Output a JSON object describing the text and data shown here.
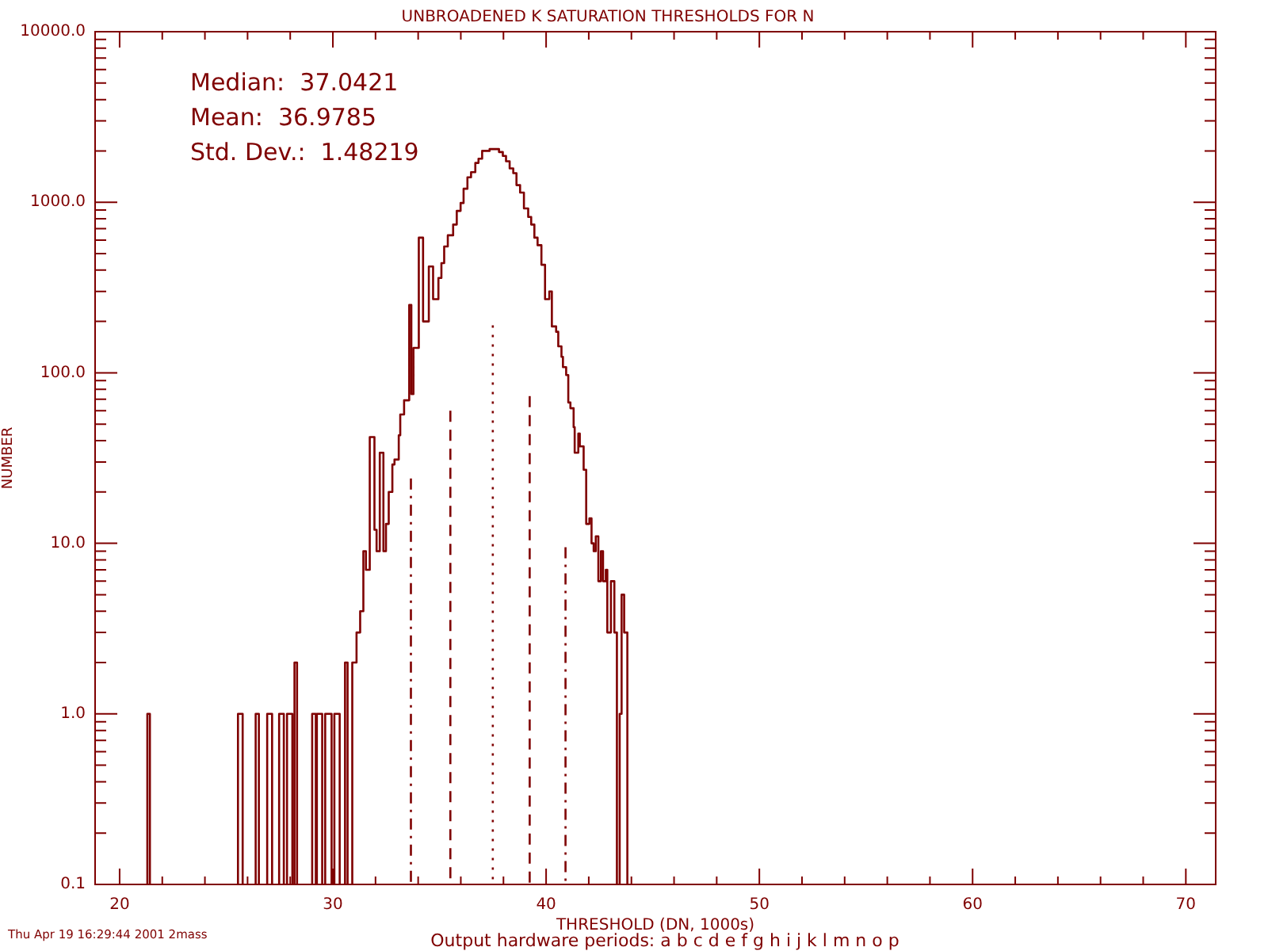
{
  "chart_data": {
    "type": "histogram",
    "title": "UNBROADENED K SATURATION THRESHOLDS FOR N",
    "xlabel": "THRESHOLD (DN, 1000s)",
    "ylabel": "NUMBER",
    "log": "y",
    "xlim": [
      18.85,
      71.4
    ],
    "xticks": [
      20,
      {
        "value": 22,
        "label": null
      },
      {
        "value": 24,
        "label": null
      },
      {
        "value": 26,
        "label": null
      },
      {
        "value": 28,
        "label": null
      },
      30,
      {
        "value": 32,
        "label": null
      },
      {
        "value": 34,
        "label": null
      },
      {
        "value": 36,
        "label": null
      },
      {
        "value": 38,
        "label": null
      },
      40,
      {
        "value": 42,
        "label": null
      },
      {
        "value": 44,
        "label": null
      },
      {
        "value": 46,
        "label": null
      },
      {
        "value": 48,
        "label": null
      },
      50,
      {
        "value": 52,
        "label": null
      },
      {
        "value": 54,
        "label": null
      },
      {
        "value": 56,
        "label": null
      },
      {
        "value": 58,
        "label": null
      },
      60,
      {
        "value": 62,
        "label": null
      },
      {
        "value": 64,
        "label": null
      },
      {
        "value": 66,
        "label": null
      },
      {
        "value": 68,
        "label": null
      },
      70
    ],
    "ylim": [
      0.1,
      10000
    ],
    "yticks": [
      0.1,
      {
        "value": 0.2,
        "label": null
      },
      {
        "value": 0.3,
        "label": null
      },
      {
        "value": 0.4,
        "label": null
      },
      {
        "value": 0.5,
        "label": null
      },
      {
        "value": 0.6,
        "label": null
      },
      {
        "value": 0.7,
        "label": null
      },
      {
        "value": 0.8,
        "label": null
      },
      {
        "value": 0.9,
        "label": null
      },
      {
        "value": 1,
        "label": "1.0"
      },
      {
        "value": 2,
        "label": null
      },
      {
        "value": 3,
        "label": null
      },
      {
        "value": 4,
        "label": null
      },
      {
        "value": 5,
        "label": null
      },
      {
        "value": 6,
        "label": null
      },
      {
        "value": 7,
        "label": null
      },
      {
        "value": 8,
        "label": null
      },
      {
        "value": 9,
        "label": null
      },
      {
        "value": 10,
        "label": "10.0"
      },
      {
        "value": 20,
        "label": null
      },
      {
        "value": 30,
        "label": null
      },
      {
        "value": 40,
        "label": null
      },
      {
        "value": 50,
        "label": null
      },
      {
        "value": 60,
        "label": null
      },
      {
        "value": 70,
        "label": null
      },
      {
        "value": 80,
        "label": null
      },
      {
        "value": 90,
        "label": null
      },
      {
        "value": 100,
        "label": "100.0"
      },
      {
        "value": 200,
        "label": null
      },
      {
        "value": 300,
        "label": null
      },
      {
        "value": 400,
        "label": null
      },
      {
        "value": 500,
        "label": null
      },
      {
        "value": 600,
        "label": null
      },
      {
        "value": 700,
        "label": null
      },
      {
        "value": 800,
        "label": null
      },
      {
        "value": 900,
        "label": null
      },
      {
        "value": 1000,
        "label": "1000.0"
      },
      {
        "value": 2000,
        "label": null
      },
      {
        "value": 3000,
        "label": null
      },
      {
        "value": 4000,
        "label": null
      },
      {
        "value": 5000,
        "label": null
      },
      {
        "value": 6000,
        "label": null
      },
      {
        "value": 7000,
        "label": null
      },
      {
        "value": 8000,
        "label": null
      },
      {
        "value": 9000,
        "label": null
      },
      {
        "value": 10000,
        "label": "10000.0"
      }
    ],
    "series": [
      {
        "color": "#7f0000",
        "bins": [
          21.3,
          21.42,
          25.55,
          25.77,
          26.38,
          26.53,
          26.92,
          27.15,
          27.48,
          27.7,
          27.85,
          28.1,
          28.2,
          28.32,
          29.03,
          29.2,
          29.25,
          29.5,
          29.64,
          29.94,
          30.07,
          30.32,
          30.57,
          30.69,
          30.91,
          31.11,
          31.28,
          31.43,
          31.55,
          31.73,
          31.95,
          32.05,
          32.2,
          32.37,
          32.49,
          32.62,
          32.79,
          32.89,
          33.09,
          33.16,
          33.34,
          33.58,
          33.68,
          33.78,
          34.03,
          34.23,
          34.5,
          34.7,
          34.95,
          35.09,
          35.22,
          35.39,
          35.64,
          35.81,
          35.99,
          36.13,
          36.31,
          36.48,
          36.68,
          36.83,
          37.0,
          37.35,
          37.79,
          37.97,
          38.12,
          38.29,
          38.46,
          38.61,
          38.78,
          38.96,
          39.16,
          39.3,
          39.45,
          39.6,
          39.78,
          39.95,
          40.15,
          40.27,
          40.47,
          40.57,
          40.72,
          40.79,
          40.94,
          41.04,
          41.14,
          41.29,
          41.34,
          41.51,
          41.58,
          41.76,
          41.88,
          42.03,
          42.13,
          42.23,
          42.33,
          42.45,
          42.57,
          42.67,
          42.8,
          42.87,
          43.04,
          43.2,
          43.32,
          43.45,
          43.54,
          43.66,
          43.81
        ],
        "values": [
          1,
          null,
          1,
          null,
          1,
          null,
          1,
          null,
          1,
          null,
          1,
          null,
          2,
          null,
          1,
          null,
          1,
          null,
          1,
          null,
          1,
          null,
          2,
          null,
          2,
          3,
          4,
          9,
          7,
          42,
          12,
          9,
          34,
          9,
          13,
          20,
          29,
          31,
          43,
          57,
          69,
          250,
          75,
          140,
          620,
          200,
          420,
          270,
          360,
          440,
          550,
          640,
          740,
          890,
          990,
          1200,
          1400,
          1500,
          1700,
          1800,
          2000,
          2050,
          1970,
          1870,
          1740,
          1580,
          1480,
          1260,
          1140,
          920,
          820,
          740,
          620,
          560,
          430,
          270,
          300,
          187,
          174,
          143,
          124,
          108,
          97,
          67,
          62,
          48,
          34,
          44,
          37,
          27,
          13,
          14,
          10,
          9,
          11,
          6,
          9,
          6,
          7,
          3,
          6,
          3,
          null,
          1,
          5,
          3
        ]
      },
      {
        "type": "line",
        "color": "#7f0000",
        "line_style": "dashdot",
        "x": [
          33.66,
          33.66
        ],
        "values": [
          0.1,
          24
        ]
      },
      {
        "type": "line",
        "color": "#7f0000",
        "line_style": "dashed",
        "x": [
          35.51,
          35.51
        ],
        "values": [
          0.1,
          60
        ]
      },
      {
        "type": "line",
        "color": "#7f0000",
        "line_style": "dotted",
        "x": [
          37.5,
          37.5
        ],
        "values": [
          0.1,
          190
        ]
      },
      {
        "type": "line",
        "color": "#7f0000",
        "line_style": "dashed",
        "x": [
          39.23,
          39.23
        ],
        "values": [
          0.1,
          73
        ]
      },
      {
        "type": "line",
        "color": "#7f0000",
        "line_style": "dashdot",
        "x": [
          40.91,
          40.91
        ],
        "values": [
          0.1,
          9.5
        ]
      }
    ],
    "annotations": [
      "Median:  37.0421",
      "Mean:  36.9785",
      "Std. Dev.:  1.48219",
      "Output hardware periods: a b c d e f g h i j k l m n o p",
      "Thu Apr 19 16:29:44 2001 2mass"
    ]
  }
}
